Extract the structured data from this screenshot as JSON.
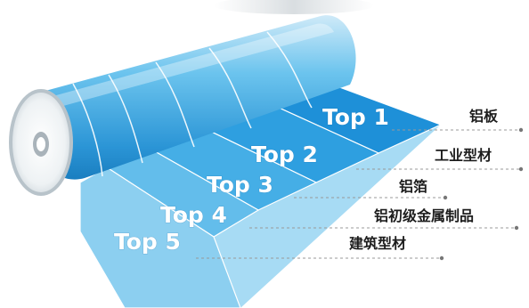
{
  "ranks": [
    {
      "rank": "Top 1",
      "category": "铝板",
      "color": "#1e90d8"
    },
    {
      "rank": "Top 2",
      "category": "工业型材",
      "color": "#2e9fe0"
    },
    {
      "rank": "Top 3",
      "category": "铝箔",
      "color": "#45aee6"
    },
    {
      "rank": "Top 4",
      "category": "铝初级金属制品",
      "color": "#63bdeb"
    },
    {
      "rank": "Top 5",
      "category": "建筑型材",
      "color": "#8ccff0"
    }
  ],
  "colors": {
    "roll_body": "#5ab8ea",
    "roll_end": "#eef3f6",
    "line": "#999999",
    "dot": "#777777"
  }
}
